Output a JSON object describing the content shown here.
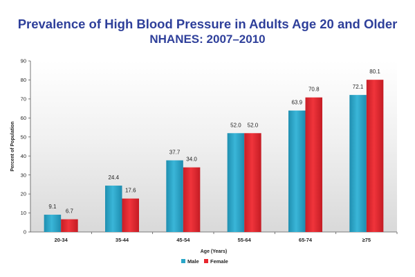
{
  "title": "Prevalence of High Blood Pressure in Adults Age 20 and Older",
  "subtitle": "NHANES: 2007–2010",
  "colors": {
    "title": "#2e3f9a",
    "male": "#2aa6c8",
    "female": "#e8262e"
  },
  "chart_data": {
    "type": "bar",
    "title": "Prevalence of High Blood Pressure in Adults Age 20 and Older",
    "subtitle": "NHANES: 2007–2010",
    "xlabel": "Age (Years)",
    "ylabel": "Percent of Population",
    "ylim": [
      0,
      90
    ],
    "yticks": [
      0,
      10,
      20,
      30,
      40,
      50,
      60,
      70,
      80,
      90
    ],
    "categories": [
      "20-34",
      "35-44",
      "45-54",
      "55-64",
      "65-74",
      "≥75"
    ],
    "series": [
      {
        "name": "Male",
        "values": [
          9.1,
          24.4,
          37.7,
          52.0,
          63.9,
          72.1
        ],
        "labels": [
          "9.1",
          "24.4",
          "37.7",
          "52.0",
          "63.9",
          "72.1"
        ]
      },
      {
        "name": "Female",
        "values": [
          6.7,
          17.6,
          34.0,
          52.0,
          70.8,
          80.1
        ],
        "labels": [
          "6.7",
          "17.6",
          "34.0",
          "52.0",
          "70.8",
          "80.1"
        ]
      }
    ],
    "legend": "bottom-center",
    "grid": false
  }
}
